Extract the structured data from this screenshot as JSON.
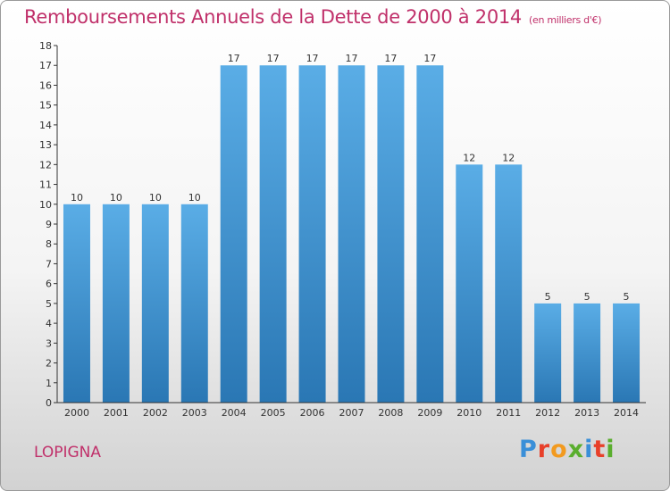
{
  "header": {
    "title": "Remboursements Annuels de la Dette de 2000 à 2014",
    "subtitle": "(en milliers d'€)"
  },
  "footer": {
    "commune": "LOPIGNA",
    "logo_text": "Proxiti"
  },
  "logo_letter_colors": [
    "#3a8fd8",
    "#e8402a",
    "#f29a1f",
    "#5aae2e",
    "#3a8fd8",
    "#e8402a",
    "#5aae2e"
  ],
  "colors": {
    "title": "#c0306a",
    "bar_light": "#5aade6",
    "bar_dark": "#2a77b4",
    "background_top": "#ffffff",
    "background_bottom": "#d2d2d2"
  },
  "chart_data": {
    "type": "bar",
    "title": "Remboursements Annuels de la Dette de 2000 à 2014",
    "subtitle": "(en milliers d'€)",
    "categories": [
      "2000",
      "2001",
      "2002",
      "2003",
      "2004",
      "2005",
      "2006",
      "2007",
      "2008",
      "2009",
      "2010",
      "2011",
      "2012",
      "2013",
      "2014"
    ],
    "values": [
      10,
      10,
      10,
      10,
      17,
      17,
      17,
      17,
      17,
      17,
      12,
      12,
      5,
      5,
      5
    ],
    "ylim": [
      0,
      18
    ],
    "yticks": [
      0,
      1,
      2,
      3,
      4,
      5,
      6,
      7,
      8,
      9,
      10,
      11,
      12,
      13,
      14,
      15,
      16,
      17,
      18
    ],
    "xlabel": "",
    "ylabel": "",
    "grid": false,
    "data_labels": true
  }
}
